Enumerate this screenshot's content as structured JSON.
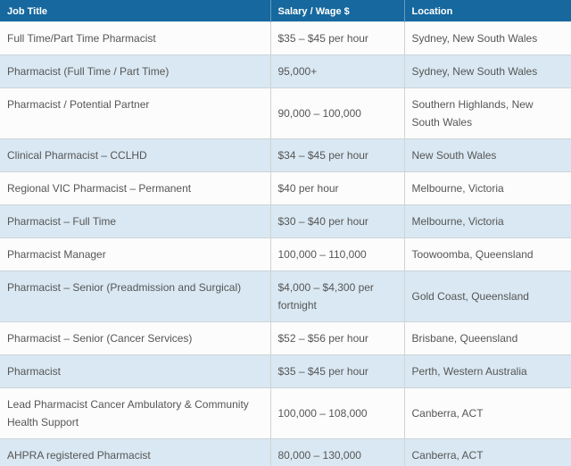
{
  "table": {
    "columns": [
      "Job Title",
      "Salary / Wage $",
      "Location"
    ],
    "rows": [
      {
        "job_title": "Full Time/Part Time Pharmacist",
        "salary": "$35 – $45 per hour",
        "location": "Sydney, New South Wales"
      },
      {
        "job_title": "Pharmacist (Full Time / Part Time)",
        "salary": "95,000+",
        "location": "Sydney, New South Wales"
      },
      {
        "job_title": "Pharmacist / Potential Partner",
        "salary": "90,000 – 100,000",
        "location": "Southern Highlands, New South Wales"
      },
      {
        "job_title": "Clinical Pharmacist – CCLHD",
        "salary": "$34 – $45 per hour",
        "location": "New South Wales"
      },
      {
        "job_title": "Regional VIC Pharmacist – Permanent",
        "salary": "$40 per hour",
        "location": "Melbourne, Victoria"
      },
      {
        "job_title": "Pharmacist – Full Time",
        "salary": "$30 – $40 per hour",
        "location": "Melbourne, Victoria"
      },
      {
        "job_title": "Pharmacist Manager",
        "salary": "100,000 – 110,000",
        "location": "Toowoomba, Queensland"
      },
      {
        "job_title": "Pharmacist – Senior (Preadmission and Surgical)",
        "salary": "$4,000 – $4,300 per fortnight",
        "location": "Gold Coast, Queensland"
      },
      {
        "job_title": "Pharmacist – Senior (Cancer Services)",
        "salary": "$52 – $56 per hour",
        "location": "Brisbane, Queensland"
      },
      {
        "job_title": "Pharmacist",
        "salary": "$35 – $45 per hour",
        "location": "Perth, Western Australia"
      },
      {
        "job_title": "Lead Pharmacist Cancer Ambulatory & Community Health Support",
        "salary": "100,000 – 108,000",
        "location": "Canberra, ACT"
      },
      {
        "job_title": "AHPRA registered Pharmacist",
        "salary": "80,000 – 130,000",
        "location": "Canberra, ACT"
      }
    ]
  },
  "colors": {
    "header_bg": "#16689E",
    "header_text": "#FFFFFF",
    "row_bg": "#FCFCFC",
    "row_alt_bg": "#D9E8F2",
    "body_text": "#565656"
  }
}
